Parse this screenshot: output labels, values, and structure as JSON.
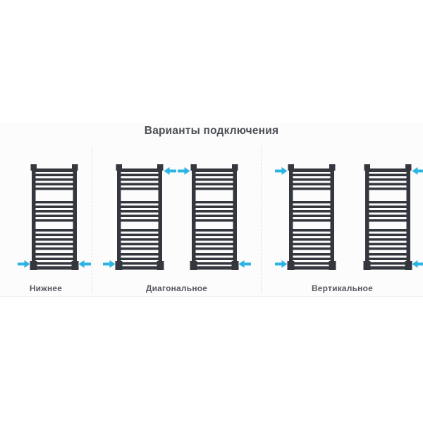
{
  "title": "Варианты подключения",
  "colors": {
    "radiator": "#34373d",
    "arrow": "#2cb5e2",
    "title_text": "#4c4f55",
    "label_text": "#55585e",
    "divider": "#d8dade",
    "band_background": "#fcfcfd"
  },
  "radiator_shape": {
    "rung_groups": [
      5,
      5,
      5,
      4
    ],
    "group_starts": [
      9,
      54,
      94,
      128
    ],
    "rung_spacing": 6.5
  },
  "sections": [
    {
      "name": "bottom-connection",
      "label": "Нижнее",
      "radiators": [
        {
          "arrows": [
            "bottom-left",
            "bottom-right"
          ]
        }
      ]
    },
    {
      "name": "diagonal-connection",
      "label": "Диагональное",
      "radiators": [
        {
          "arrows": [
            "top-right",
            "bottom-left"
          ]
        },
        {
          "arrows": [
            "top-left",
            "bottom-right"
          ]
        }
      ]
    },
    {
      "name": "vertical-connection",
      "label": "Вертикальное",
      "radiators": [
        {
          "arrows": [
            "top-left",
            "bottom-left"
          ]
        },
        {
          "arrows": [
            "top-right",
            "bottom-right"
          ]
        }
      ]
    }
  ]
}
